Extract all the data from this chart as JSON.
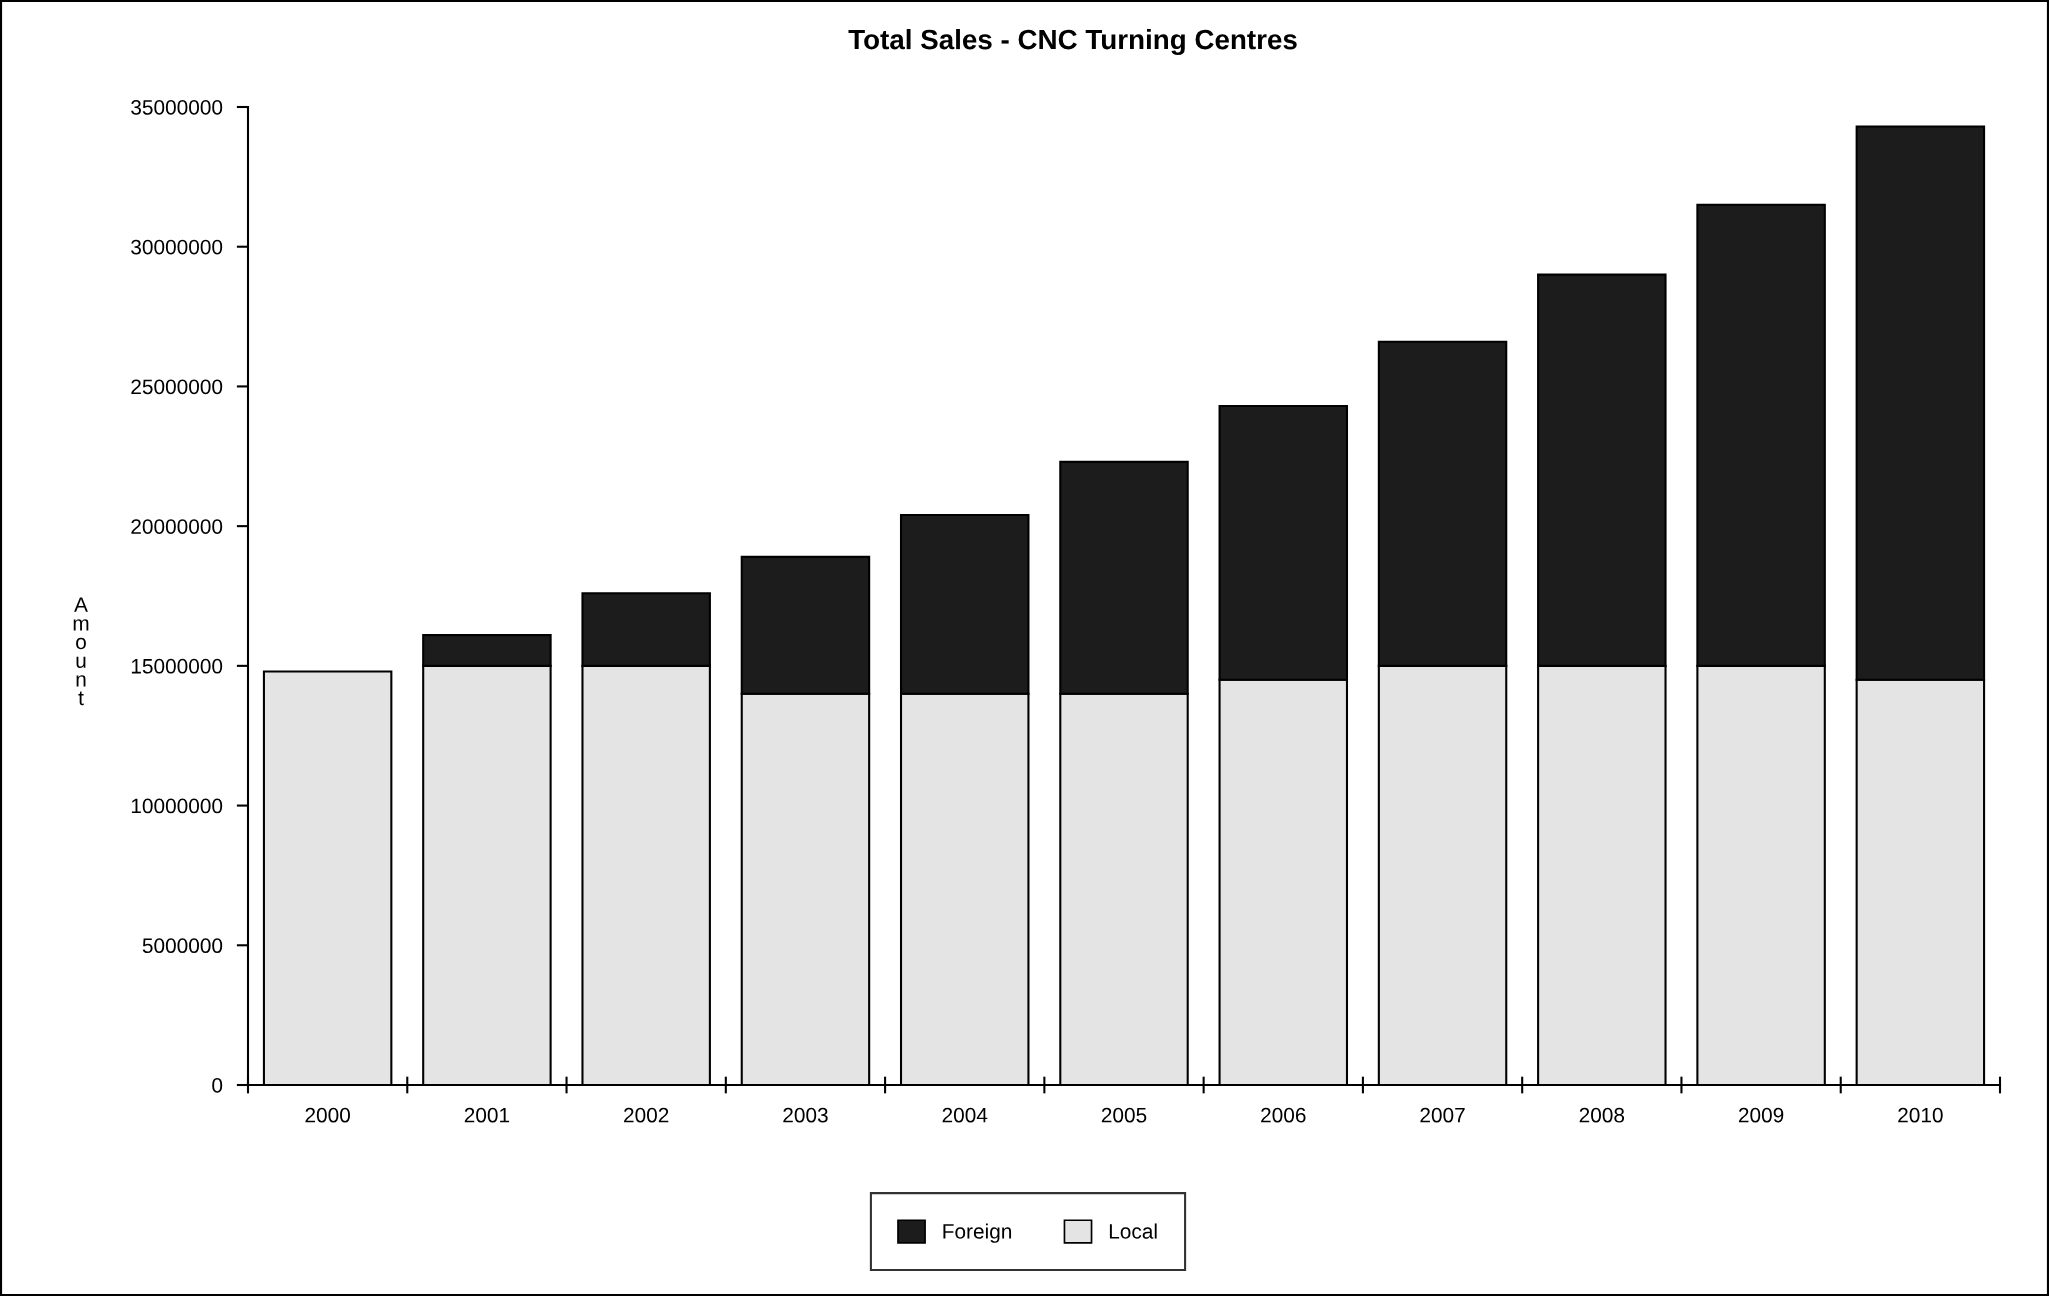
{
  "chart_data": {
    "type": "bar",
    "title": "Total Sales - CNC Turning Centres",
    "ylabel": "Amount",
    "categories": [
      "2000",
      "2001",
      "2002",
      "2003",
      "2004",
      "2005",
      "2006",
      "2007",
      "2008",
      "2009",
      "2010"
    ],
    "stacked": true,
    "series": [
      {
        "name": "Local",
        "color": "#e4e4e4",
        "values": [
          14800000,
          15000000,
          15000000,
          14000000,
          14000000,
          14000000,
          14500000,
          15000000,
          15000000,
          15000000,
          14500000
        ]
      },
      {
        "name": "Foreign",
        "color": "#1c1c1c",
        "values": [
          null,
          1100000,
          2600000,
          4900000,
          6400000,
          8300000,
          9800000,
          11600000,
          14000000,
          16500000,
          19800000
        ]
      }
    ],
    "ylim": [
      0,
      35000000
    ],
    "yticks": [
      0,
      5000000,
      10000000,
      15000000,
      20000000,
      25000000,
      30000000,
      35000000
    ],
    "grid": false,
    "legend": "bottom"
  }
}
